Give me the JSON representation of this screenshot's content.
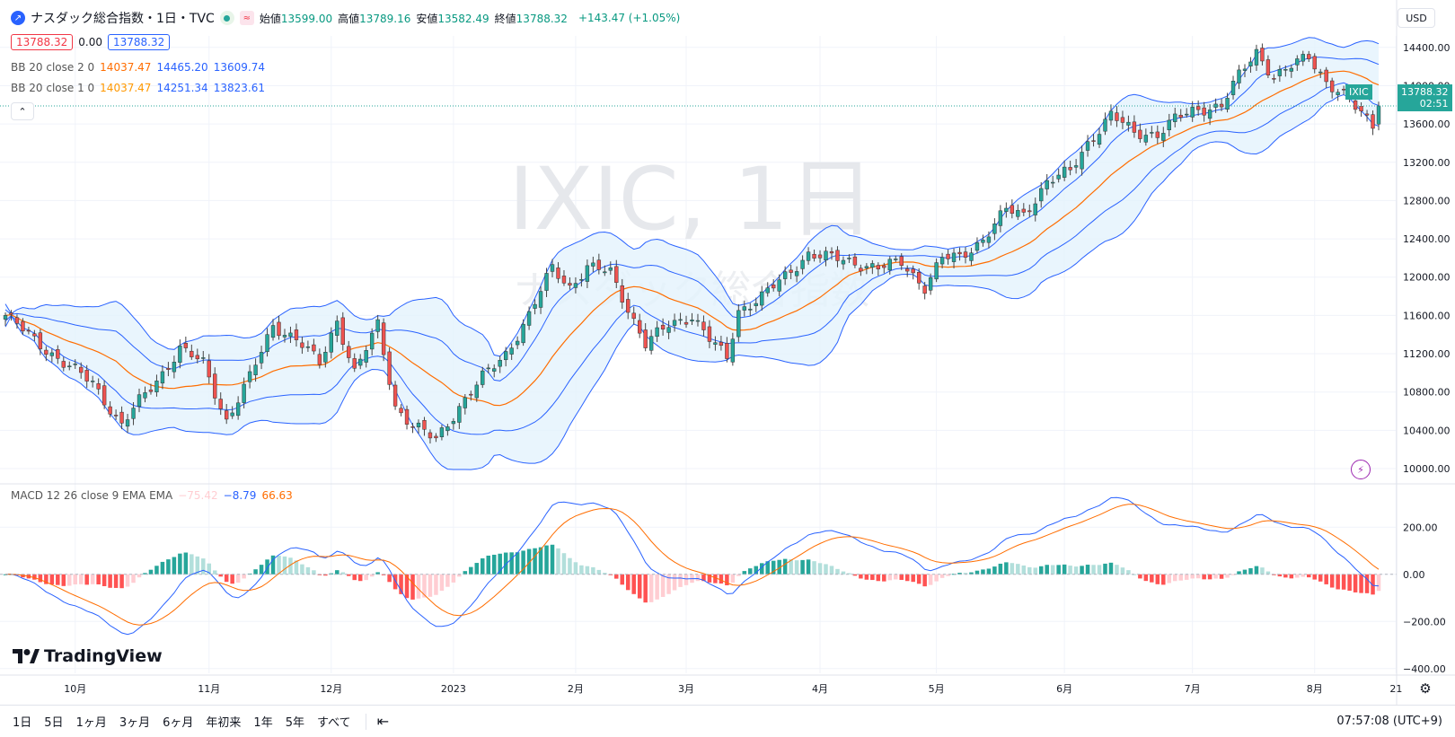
{
  "header": {
    "symbol_title": "ナスダック総合指数・1日・TVC",
    "ohlc": [
      {
        "label": "始値",
        "value": "13599.00"
      },
      {
        "label": "高値",
        "value": "13789.16"
      },
      {
        "label": "安値",
        "value": "13582.49"
      },
      {
        "label": "終値",
        "value": "13788.32"
      }
    ],
    "change": "+143.47 (+1.05%)",
    "price_box_1": "13788.32",
    "spread": "0.00",
    "price_box_2": "13788.32"
  },
  "indicators": {
    "bb2": {
      "label": "BB 20 close 2 0",
      "basis": "14037.47",
      "upper": "14465.20",
      "lower": "13609.74"
    },
    "bb1": {
      "label": "BB 20 close 1 0",
      "basis": "14037.47",
      "upper": "14251.34",
      "lower": "13823.61"
    },
    "macd": {
      "label": "MACD 12 26 close 9 EMA EMA",
      "hist": "−75.42",
      "macd": "−8.79",
      "signal": "66.63"
    }
  },
  "watermark": {
    "line1": "IXIC, 1日",
    "line2": "ナスダック総合指数"
  },
  "currency": "USD",
  "last_price_tag": {
    "symbol": "IXIC",
    "price": "13788.32",
    "countdown": "02:51"
  },
  "bottom_bar": {
    "ranges": [
      "1日",
      "5日",
      "1ヶ月",
      "3ヶ月",
      "6ヶ月",
      "年初来",
      "1年",
      "5年",
      "すべて"
    ],
    "clock": "07:57:08 (UTC+9)"
  },
  "logo_text": "TradingView",
  "colors": {
    "up": "#26a69a",
    "down": "#ef5350",
    "basis": "#ff6d00",
    "band": "#2962ff",
    "band_fill": "#e3f2fd",
    "macd": "#2962ff",
    "signal": "#ff6d00",
    "hist_up_strong": "#26a69a",
    "hist_up_weak": "#b2dfdb",
    "hist_down_strong": "#ff5252",
    "hist_down_weak": "#ffcdd2"
  },
  "chart_data": {
    "type": "candlestick",
    "price_axis": {
      "ticks": [
        10000,
        10400,
        10800,
        11200,
        11600,
        12000,
        12400,
        12800,
        13200,
        13600,
        14000,
        14400
      ],
      "tick_labels": [
        "10000.00",
        "10400.00",
        "10800.00",
        "11200.00",
        "11600.00",
        "12000.00",
        "12400.00",
        "12800.00",
        "13200.00",
        "13600.00",
        "14000.00",
        "14400.00"
      ]
    },
    "macd_axis": {
      "ticks": [
        200,
        0,
        -200,
        -400
      ],
      "tick_labels": [
        "200.00",
        "0.00",
        "−200.00",
        "−400.00"
      ]
    },
    "time_labels": [
      {
        "label": "10月",
        "index": 12
      },
      {
        "label": "11月",
        "index": 35
      },
      {
        "label": "12月",
        "index": 56
      },
      {
        "label": "2023",
        "index": 77
      },
      {
        "label": "2月",
        "index": 98
      },
      {
        "label": "3月",
        "index": 117
      },
      {
        "label": "4月",
        "index": 140
      },
      {
        "label": "5月",
        "index": 160
      },
      {
        "label": "6月",
        "index": 182
      },
      {
        "label": "7月",
        "index": 204
      },
      {
        "label": "8月",
        "index": 225
      },
      {
        "label": "21",
        "index": 239
      }
    ],
    "key_closes": [
      [
        0,
        11600
      ],
      [
        5,
        11350
      ],
      [
        10,
        11100
      ],
      [
        15,
        10900
      ],
      [
        20,
        10450
      ],
      [
        23,
        10700
      ],
      [
        27,
        11000
      ],
      [
        30,
        11250
      ],
      [
        34,
        11100
      ],
      [
        38,
        10500
      ],
      [
        42,
        10950
      ],
      [
        46,
        11500
      ],
      [
        50,
        11350
      ],
      [
        54,
        11100
      ],
      [
        57,
        11550
      ],
      [
        60,
        11000
      ],
      [
        64,
        11500
      ],
      [
        67,
        10650
      ],
      [
        70,
        10450
      ],
      [
        74,
        10300
      ],
      [
        78,
        10650
      ],
      [
        82,
        10950
      ],
      [
        86,
        11200
      ],
      [
        90,
        11600
      ],
      [
        94,
        12100
      ],
      [
        97,
        11900
      ],
      [
        100,
        12100
      ],
      [
        104,
        12050
      ],
      [
        106,
        11800
      ],
      [
        110,
        11300
      ],
      [
        114,
        11500
      ],
      [
        118,
        11600
      ],
      [
        121,
        11350
      ],
      [
        124,
        11150
      ],
      [
        126,
        11650
      ],
      [
        130,
        11800
      ],
      [
        134,
        12000
      ],
      [
        138,
        12250
      ],
      [
        142,
        12200
      ],
      [
        146,
        12150
      ],
      [
        150,
        12100
      ],
      [
        154,
        12150
      ],
      [
        158,
        11900
      ],
      [
        161,
        12200
      ],
      [
        164,
        12200
      ],
      [
        168,
        12400
      ],
      [
        172,
        12700
      ],
      [
        175,
        12650
      ],
      [
        179,
        13000
      ],
      [
        183,
        13100
      ],
      [
        186,
        13400
      ],
      [
        190,
        13700
      ],
      [
        194,
        13500
      ],
      [
        198,
        13500
      ],
      [
        201,
        13650
      ],
      [
        205,
        13750
      ],
      [
        209,
        13800
      ],
      [
        212,
        14100
      ],
      [
        215,
        14350
      ],
      [
        218,
        14100
      ],
      [
        221,
        14200
      ],
      [
        224,
        14300
      ],
      [
        227,
        14050
      ],
      [
        230,
        13900
      ],
      [
        233,
        13700
      ],
      [
        235,
        13588
      ],
      [
        236,
        13788
      ]
    ],
    "last_close": 13788.32,
    "ohlc_last": {
      "open": 13599.0,
      "high": 13789.16,
      "low": 13582.49,
      "close": 13788.32
    },
    "bollinger": {
      "period": 20,
      "multipliers": [
        2,
        1
      ]
    },
    "macd": {
      "fast": 12,
      "slow": 26,
      "signal": 9,
      "last": {
        "hist": -75.42,
        "macd": -8.79,
        "signal": 66.63
      }
    }
  }
}
